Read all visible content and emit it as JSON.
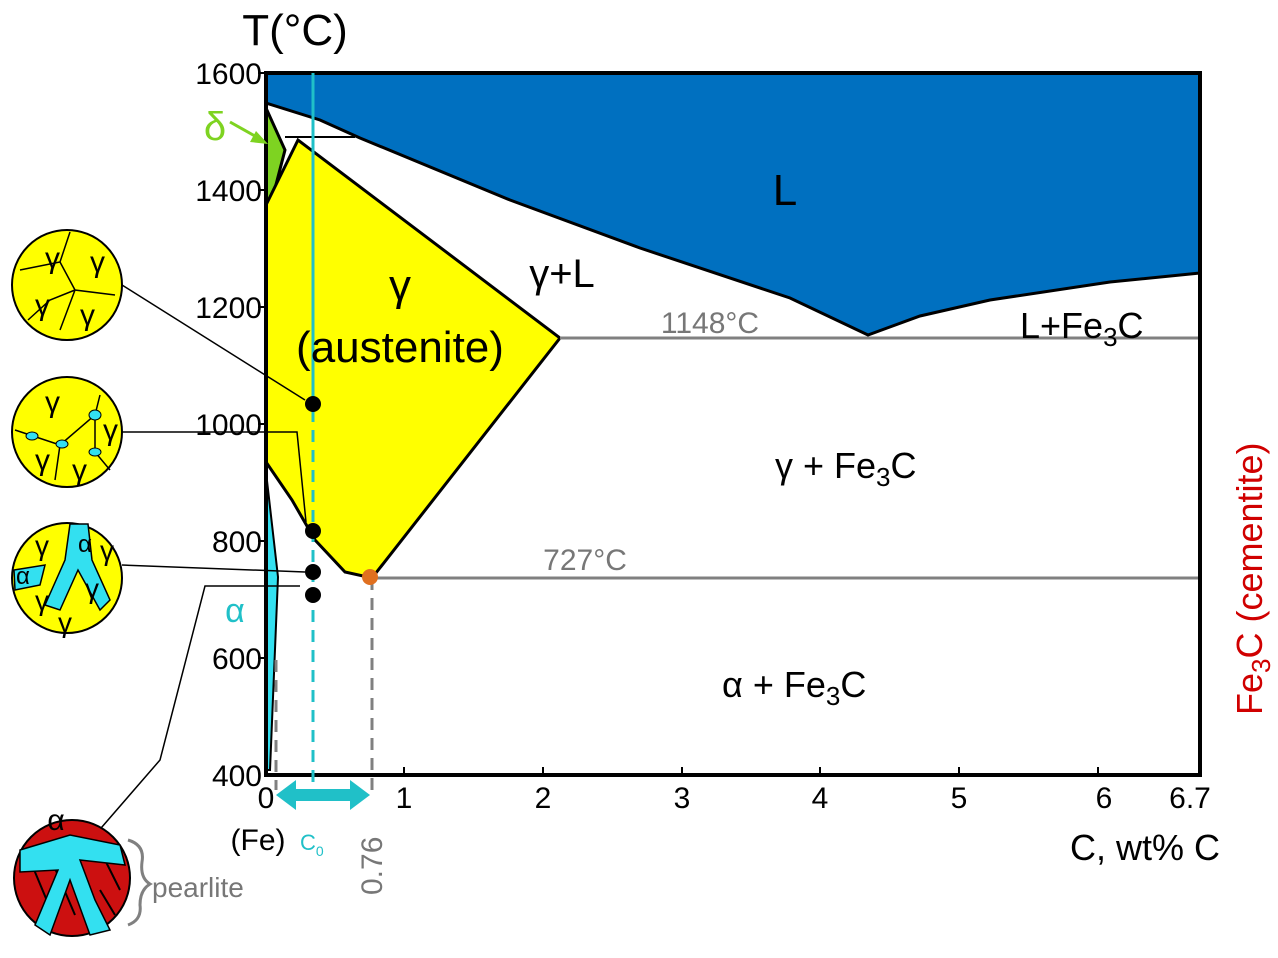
{
  "axis": {
    "y_label": "T(°C)",
    "x_label": "C, wt% C",
    "y_ticks": [
      "1600",
      "1400",
      "1200",
      "1000",
      "800",
      "600",
      "400"
    ],
    "x_ticks": [
      "0",
      "1",
      "2",
      "3",
      "4",
      "5",
      "6",
      "6.7"
    ],
    "x_origin_note": "(Fe)"
  },
  "regions": {
    "liquid": "L",
    "delta": "δ",
    "austenite": [
      "γ",
      "(austenite)"
    ],
    "gamma_liquid": "γ+L",
    "liquid_cementite": [
      "L+Fe",
      "3",
      "C"
    ],
    "gamma_cementite": [
      "γ + Fe",
      "3",
      "C"
    ],
    "alpha": "α",
    "alpha_cementite": [
      "α + Fe",
      "3",
      "C"
    ]
  },
  "isotherms": {
    "eutectic": "1148°C",
    "eutectoid": "727°C"
  },
  "compositions": {
    "c0": [
      "C",
      "0"
    ],
    "eutectoid": "0.76",
    "cementite": [
      "Fe",
      "3",
      "C (cementite)"
    ]
  },
  "microstructures": [
    {
      "labels": [
        "γ",
        "γ",
        "γ",
        "γ"
      ]
    },
    {
      "labels": [
        "γ",
        "γ",
        "γ",
        "γ"
      ]
    },
    {
      "labels": [
        "γ",
        "α",
        "γ",
        "α",
        "γ",
        "γ",
        "γ"
      ]
    },
    {
      "labels": [
        "α"
      ],
      "note": "pearlite"
    }
  ]
}
